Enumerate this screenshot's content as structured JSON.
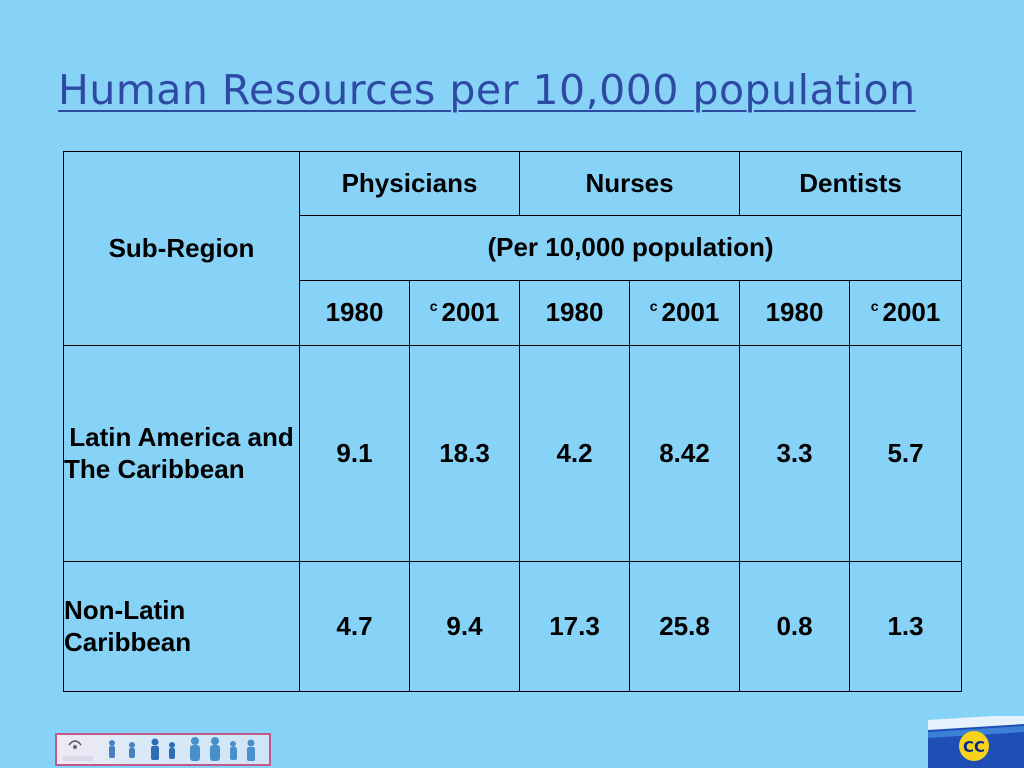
{
  "title": "Human Resources per 10,000 population",
  "table": {
    "sub_region_header": "Sub-Region",
    "groups": [
      "Physicians",
      "Nurses",
      "Dentists"
    ],
    "unit_label": "(Per 10,000 population)",
    "year_marker": "c",
    "years": [
      "1980",
      "2001",
      "1980",
      "2001",
      "1980",
      "2001"
    ],
    "rows": [
      {
        "region": "Latin America and The Caribbean",
        "values": [
          "9.1",
          "18.3",
          "4.2",
          "8.42",
          "3.3",
          "5.7"
        ]
      },
      {
        "region": "Non-Latin Caribbean",
        "values": [
          "4.7",
          "9.4",
          "17.3",
          "25.8",
          "0.8",
          "1.3"
        ]
      }
    ]
  },
  "logos": {
    "left": "hecora-logo",
    "right": "caricom-logo"
  },
  "colors": {
    "background": "#87d3f8",
    "title": "#2e4aa3"
  }
}
